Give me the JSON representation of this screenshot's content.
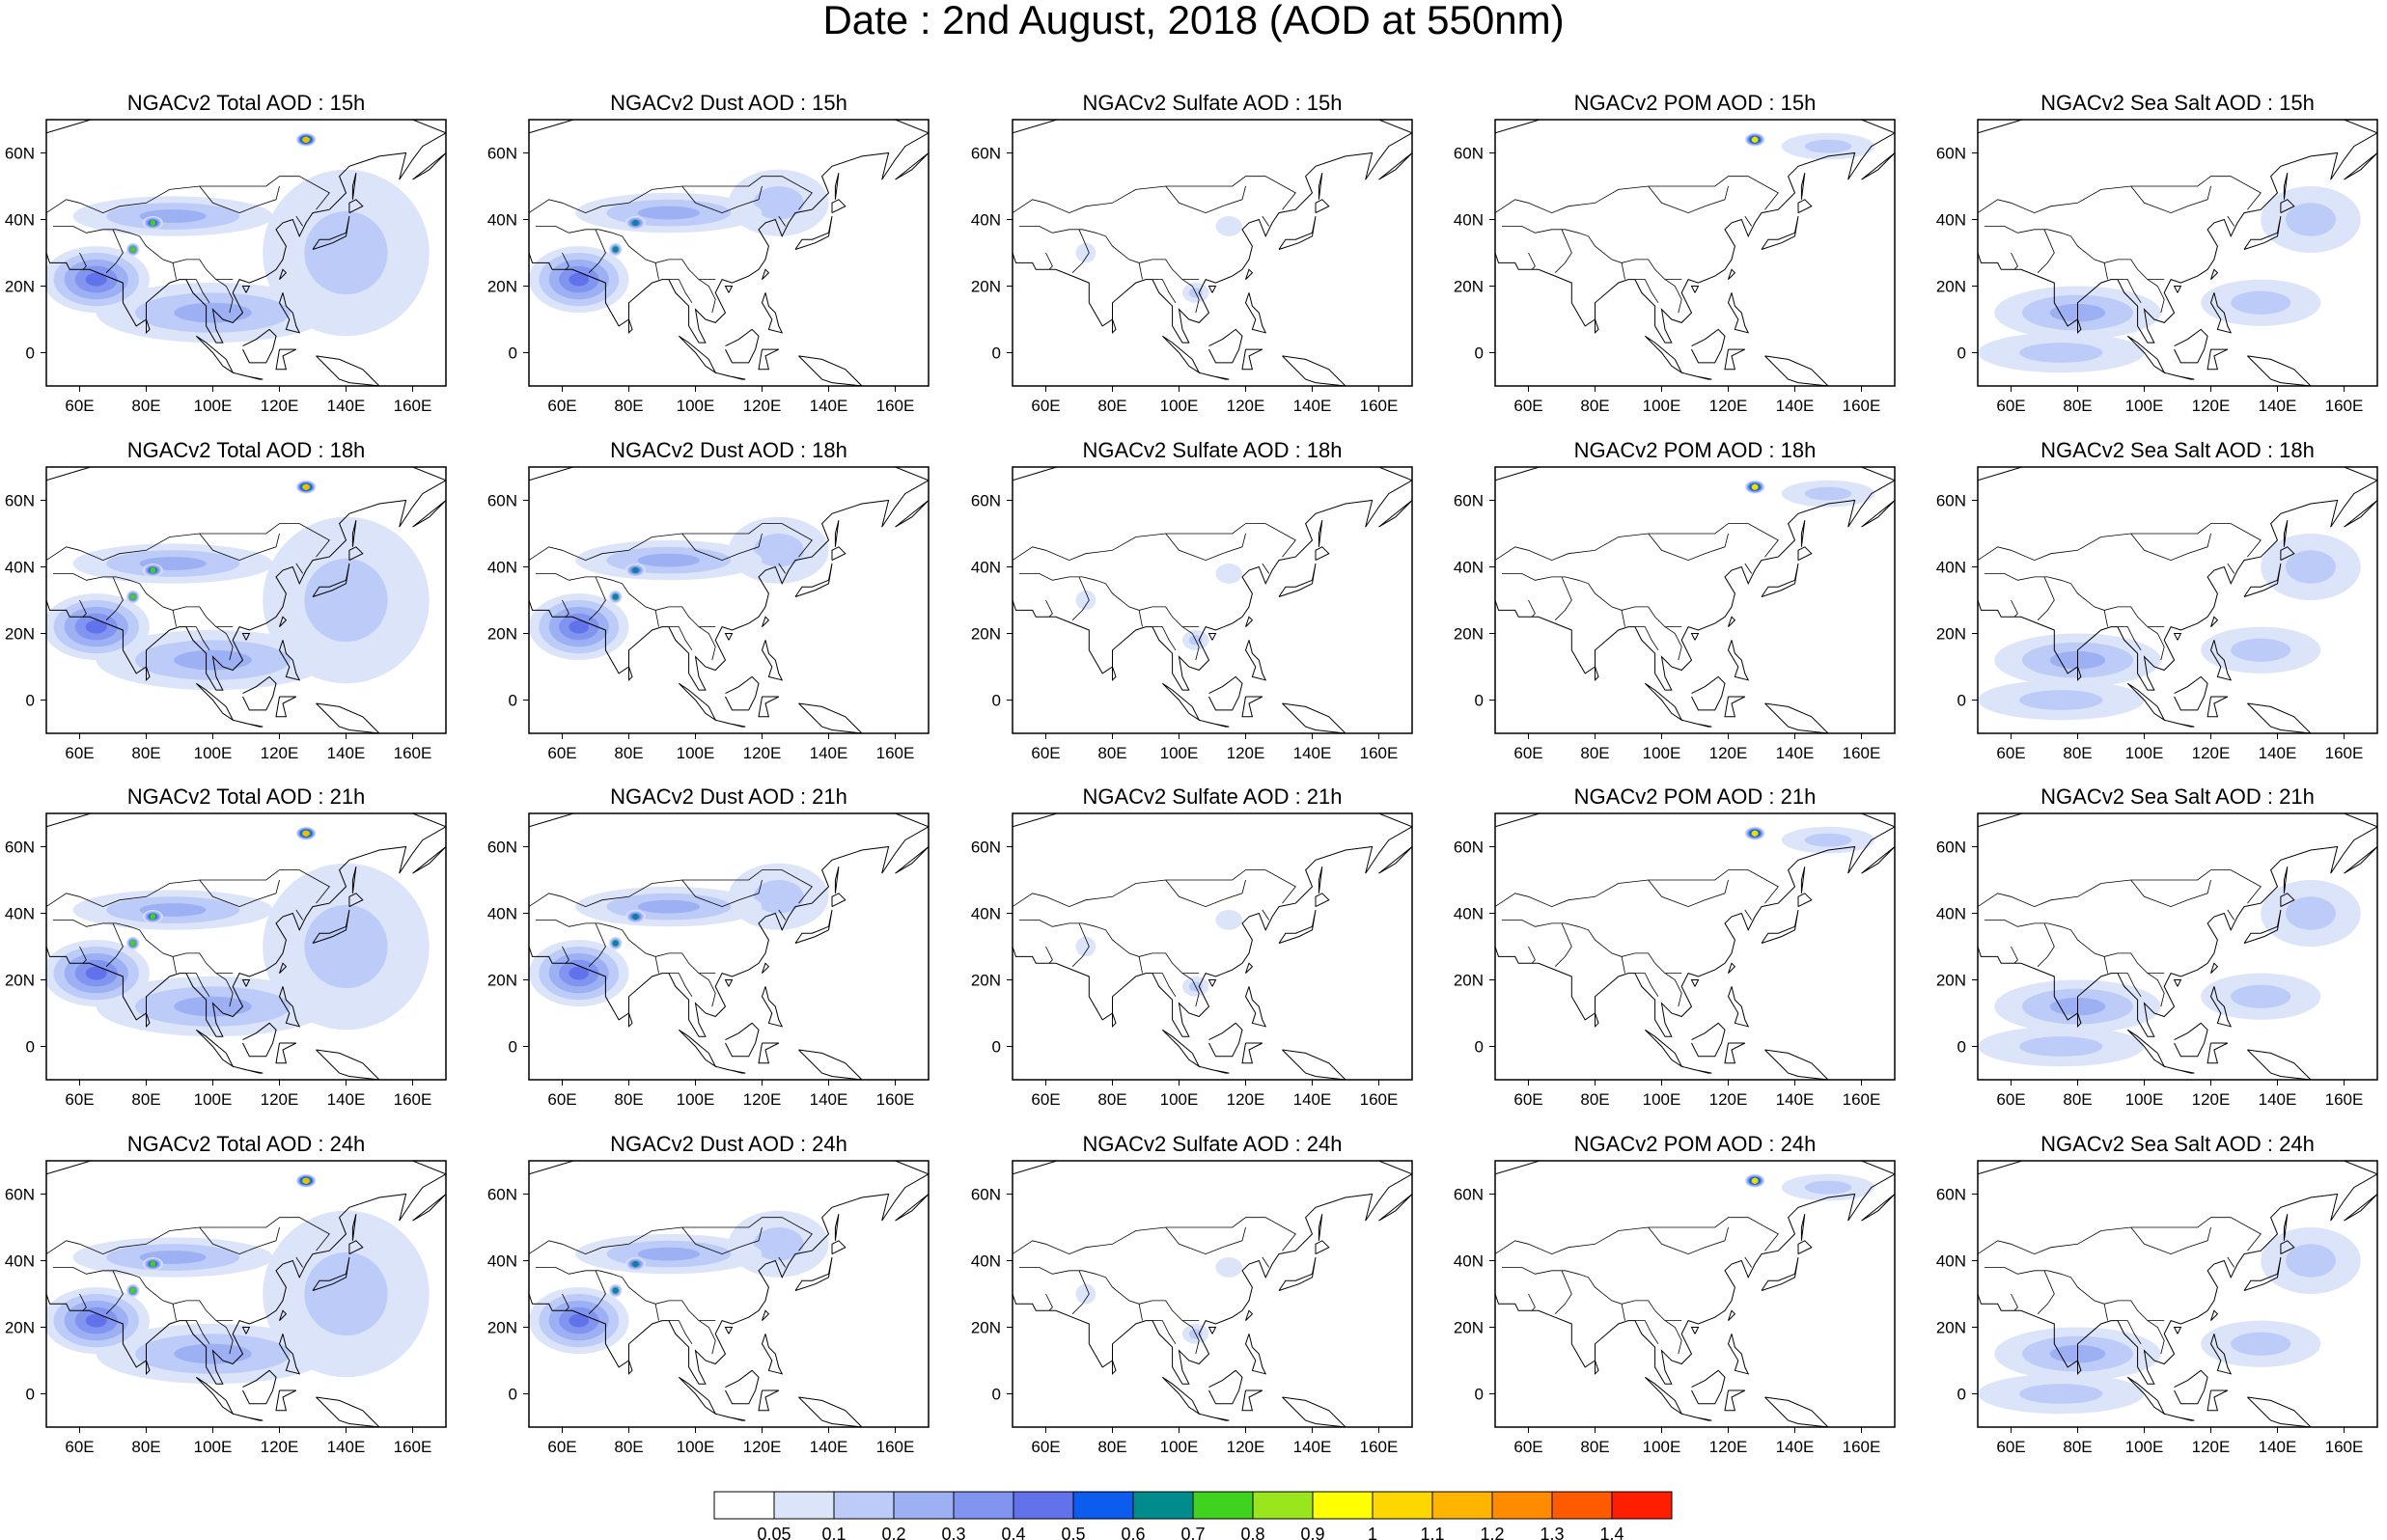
{
  "title": "Date : 2nd August, 2018 (AOD at 550nm)",
  "lon_ticks": [
    "60E",
    "80E",
    "100E",
    "120E",
    "140E",
    "160E"
  ],
  "lat_ticks": [
    "60N",
    "40N",
    "20N",
    "0"
  ],
  "lon_range": [
    50,
    170
  ],
  "lat_range": [
    -10,
    70
  ],
  "colorbar": {
    "labels": [
      "0.05",
      "0.1",
      "0.2",
      "0.3",
      "0.4",
      "0.5",
      "0.6",
      "0.7",
      "0.8",
      "0.9",
      "1",
      "1.1",
      "1.2",
      "1.3",
      "1.4"
    ],
    "colors": [
      "#ffffff",
      "#dce4fa",
      "#bccbf7",
      "#9db0f3",
      "#8094f0",
      "#6272eb",
      "#0c5cef",
      "#008c8c",
      "#3fd21e",
      "#9ae61c",
      "#ffff00",
      "#ffd700",
      "#ffb400",
      "#ff8c00",
      "#ff5a00",
      "#ff1e00"
    ]
  },
  "panels": [
    [
      {
        "title": "NGACv2 Total AOD : 15h",
        "species": "total",
        "hour": 15
      },
      {
        "title": "NGACv2 Dust AOD : 15h",
        "species": "dust",
        "hour": 15
      },
      {
        "title": "NGACv2 Sulfate AOD : 15h",
        "species": "sulfate",
        "hour": 15
      },
      {
        "title": "NGACv2 POM AOD : 15h",
        "species": "pom",
        "hour": 15
      },
      {
        "title": "NGACv2 Sea Salt AOD : 15h",
        "species": "seasalt",
        "hour": 15
      }
    ],
    [
      {
        "title": "NGACv2 Total AOD : 18h",
        "species": "total",
        "hour": 18
      },
      {
        "title": "NGACv2 Dust AOD : 18h",
        "species": "dust",
        "hour": 18
      },
      {
        "title": "NGACv2 Sulfate AOD : 18h",
        "species": "sulfate",
        "hour": 18
      },
      {
        "title": "NGACv2 POM AOD : 18h",
        "species": "pom",
        "hour": 18
      },
      {
        "title": "NGACv2 Sea Salt AOD : 18h",
        "species": "seasalt",
        "hour": 18
      }
    ],
    [
      {
        "title": "NGACv2 Total AOD : 21h",
        "species": "total",
        "hour": 21
      },
      {
        "title": "NGACv2 Dust AOD : 21h",
        "species": "dust",
        "hour": 21
      },
      {
        "title": "NGACv2 Sulfate AOD : 21h",
        "species": "sulfate",
        "hour": 21
      },
      {
        "title": "NGACv2 POM AOD : 21h",
        "species": "pom",
        "hour": 21
      },
      {
        "title": "NGACv2 Sea Salt AOD : 21h",
        "species": "seasalt",
        "hour": 21
      }
    ],
    [
      {
        "title": "NGACv2 Total AOD : 24h",
        "species": "total",
        "hour": 24
      },
      {
        "title": "NGACv2 Dust AOD : 24h",
        "species": "dust",
        "hour": 24
      },
      {
        "title": "NGACv2 Sulfate AOD : 24h",
        "species": "sulfate",
        "hour": 24
      },
      {
        "title": "NGACv2 POM AOD : 24h",
        "species": "pom",
        "hour": 24
      },
      {
        "title": "NGACv2 Sea Salt  AOD : 24h",
        "species": "seasalt",
        "hour": 24
      }
    ]
  ],
  "aod_features": {
    "total": [
      {
        "lon": 65,
        "lat": 22,
        "value": 0.45,
        "rlon": 16,
        "rlat": 10
      },
      {
        "lon": 82,
        "lat": 39,
        "value": 0.7,
        "rlon": 3,
        "rlat": 2
      },
      {
        "lon": 76,
        "lat": 31,
        "value": 0.75,
        "rlon": 2,
        "rlat": 2
      },
      {
        "lon": 88,
        "lat": 41,
        "value": 0.25,
        "rlon": 30,
        "rlat": 6
      },
      {
        "lon": 128,
        "lat": 64,
        "value": 1.1,
        "rlon": 3,
        "rlat": 2
      },
      {
        "lon": 100,
        "lat": 12,
        "value": 0.2,
        "rlon": 35,
        "rlat": 9
      },
      {
        "lon": 140,
        "lat": 30,
        "value": 0.12,
        "rlon": 25,
        "rlat": 25
      }
    ],
    "dust": [
      {
        "lon": 65,
        "lat": 22,
        "value": 0.4,
        "rlon": 15,
        "rlat": 10
      },
      {
        "lon": 82,
        "lat": 39,
        "value": 0.65,
        "rlon": 3,
        "rlat": 2
      },
      {
        "lon": 76,
        "lat": 31,
        "value": 0.6,
        "rlon": 2,
        "rlat": 2
      },
      {
        "lon": 92,
        "lat": 42,
        "value": 0.22,
        "rlon": 28,
        "rlat": 6
      },
      {
        "lon": 125,
        "lat": 45,
        "value": 0.12,
        "rlon": 15,
        "rlat": 10
      }
    ],
    "sulfate": [
      {
        "lon": 105,
        "lat": 18,
        "value": 0.1,
        "rlon": 4,
        "rlat": 3
      },
      {
        "lon": 72,
        "lat": 30,
        "value": 0.08,
        "rlon": 3,
        "rlat": 3
      },
      {
        "lon": 115,
        "lat": 38,
        "value": 0.08,
        "rlon": 4,
        "rlat": 3
      }
    ],
    "pom": [
      {
        "lon": 128,
        "lat": 64,
        "value": 1.0,
        "rlon": 3,
        "rlat": 2
      },
      {
        "lon": 150,
        "lat": 62,
        "value": 0.12,
        "rlon": 14,
        "rlat": 4
      }
    ],
    "seasalt": [
      {
        "lon": 80,
        "lat": 12,
        "value": 0.2,
        "rlon": 25,
        "rlat": 8
      },
      {
        "lon": 135,
        "lat": 15,
        "value": 0.18,
        "rlon": 18,
        "rlat": 7
      },
      {
        "lon": 75,
        "lat": 0,
        "value": 0.12,
        "rlon": 25,
        "rlat": 6
      },
      {
        "lon": 150,
        "lat": 40,
        "value": 0.1,
        "rlon": 15,
        "rlat": 10
      }
    ]
  }
}
